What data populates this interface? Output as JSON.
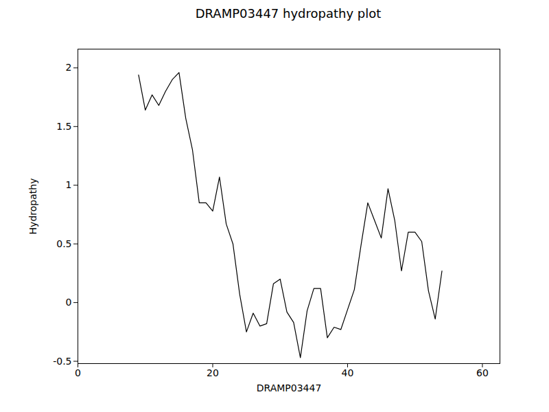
{
  "chart_data": {
    "type": "line",
    "title": "DRAMP03447 hydropathy plot",
    "x_label": "DRAMP03447",
    "y_label": "Hydropathy",
    "x": [
      9,
      10,
      11,
      12,
      13,
      14,
      15,
      16,
      17,
      18,
      19,
      20,
      21,
      22,
      23,
      24,
      25,
      26,
      27,
      28,
      29,
      30,
      31,
      32,
      33,
      34,
      35,
      36,
      37,
      38,
      39,
      40,
      41,
      42,
      43,
      44,
      45,
      46,
      47,
      48,
      49,
      50,
      51,
      52,
      53,
      54
    ],
    "values": [
      1.94,
      1.64,
      1.77,
      1.68,
      1.8,
      1.9,
      1.96,
      1.57,
      1.3,
      0.85,
      0.85,
      0.78,
      1.07,
      0.67,
      0.5,
      0.07,
      -0.25,
      -0.09,
      -0.2,
      -0.18,
      0.16,
      0.2,
      -0.08,
      -0.17,
      -0.47,
      -0.07,
      0.12,
      0.12,
      -0.3,
      -0.21,
      -0.23,
      -0.06,
      0.11,
      0.49,
      0.85,
      0.7,
      0.55,
      0.97,
      0.7,
      0.27,
      0.6,
      0.6,
      0.52,
      0.1,
      -0.14,
      0.27
    ],
    "color": "#000000",
    "xlim": [
      0,
      62.6
    ],
    "xticks": [
      0,
      20,
      40,
      60
    ],
    "ylim": [
      -0.52,
      2.16
    ],
    "yticks": [
      -0.5,
      0,
      0.5,
      1,
      1.5,
      2
    ],
    "grid": false
  }
}
